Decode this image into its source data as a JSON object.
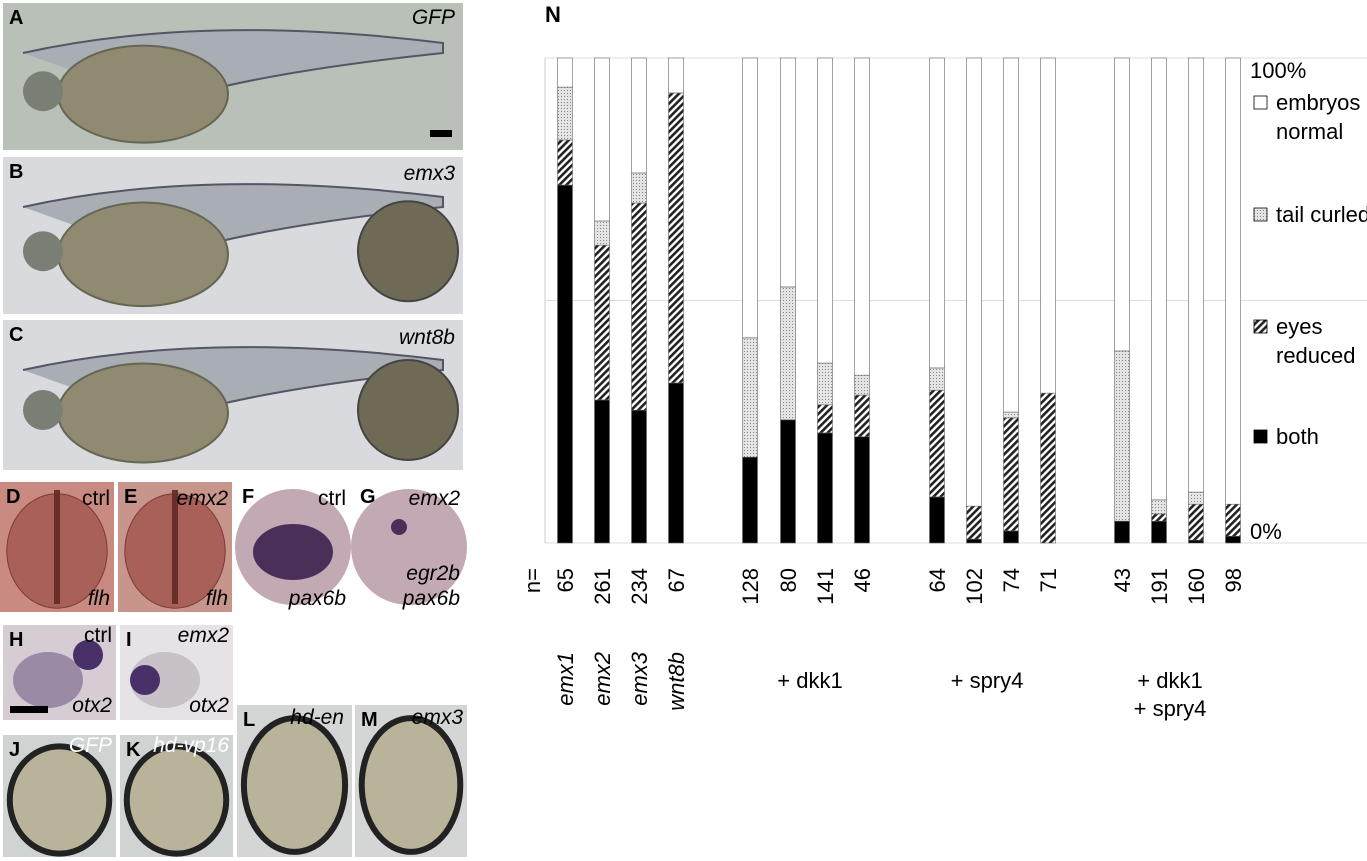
{
  "panels": [
    {
      "letter": "A",
      "labels": [
        "GFP"
      ]
    },
    {
      "letter": "B",
      "labels": [
        "emx3"
      ]
    },
    {
      "letter": "C",
      "labels": [
        "wnt8b"
      ]
    },
    {
      "letter": "D",
      "labels": [
        "ctrl",
        "flh"
      ]
    },
    {
      "letter": "E",
      "labels": [
        "emx2",
        "flh"
      ]
    },
    {
      "letter": "F",
      "labels": [
        "ctrl",
        "pax6b"
      ]
    },
    {
      "letter": "G",
      "labels": [
        "emx2",
        "egr2b",
        "pax6b"
      ]
    },
    {
      "letter": "H",
      "labels": [
        "ctrl",
        "otx2"
      ]
    },
    {
      "letter": "I",
      "labels": [
        "emx2",
        "otx2"
      ]
    },
    {
      "letter": "J",
      "labels": [
        "GFP"
      ]
    },
    {
      "letter": "K",
      "labels": [
        "hd-vp16"
      ]
    },
    {
      "letter": "L",
      "labels": [
        "hd-en"
      ]
    },
    {
      "letter": "M",
      "labels": [
        "emx3"
      ]
    }
  ],
  "chart_data": {
    "type": "stacked_bar",
    "title": "N",
    "category_prefix": "n=",
    "categories": [
      "65",
      "261",
      "234",
      "67",
      "128",
      "80",
      "141",
      "46",
      "64",
      "102",
      "74",
      "71",
      "43",
      "191",
      "160",
      "98"
    ],
    "groups": [
      {
        "labels": [
          "emx1"
        ]
      },
      {
        "labels": [
          "emx2"
        ]
      },
      {
        "labels": [
          "emx3"
        ]
      },
      {
        "labels": [
          "wnt8b"
        ]
      },
      {
        "labels": [
          "+ dkk1"
        ]
      },
      {
        "labels": [
          "+ spry4"
        ]
      },
      {
        "labels": [
          "+ dkk1",
          "+ spry4"
        ]
      }
    ],
    "series": [
      {
        "name": "both",
        "color": "#000000",
        "pattern": "solid",
        "values": [
          73.8,
          29.5,
          27.4,
          33,
          17.7,
          25.4,
          22.7,
          21.9,
          9.5,
          0.8,
          2.5,
          0,
          4.5,
          4.5,
          0.6,
          1.4
        ]
      },
      {
        "name": "eyes reduced",
        "color": "#333333",
        "pattern": "hatch",
        "values": [
          9.3,
          31.9,
          42.7,
          59.8,
          0,
          0,
          5.8,
          8.6,
          22,
          6.8,
          23.3,
          30.9,
          0,
          1.5,
          7.4,
          6.6
        ]
      },
      {
        "name": "tail curled",
        "color": "#999999",
        "pattern": "dots",
        "values": [
          10.9,
          5,
          6.2,
          0,
          24.6,
          27.4,
          8.6,
          4.1,
          4.6,
          0,
          1.2,
          0,
          35.1,
          2.9,
          2.5,
          0
        ]
      },
      {
        "name": "embryos normal",
        "color": "#ffffff",
        "pattern": "solid",
        "values": [
          6,
          33.6,
          23.7,
          7.2,
          57.7,
          47.2,
          62.9,
          65.4,
          63.9,
          92.4,
          73,
          69.1,
          60.4,
          91.1,
          89.5,
          92
        ]
      }
    ],
    "ylim": [
      0,
      100
    ],
    "yticks": [
      {
        "value": 0,
        "label": "0%"
      },
      {
        "value": 100,
        "label": "100%"
      }
    ],
    "gridlines": [
      0,
      50,
      100
    ]
  }
}
